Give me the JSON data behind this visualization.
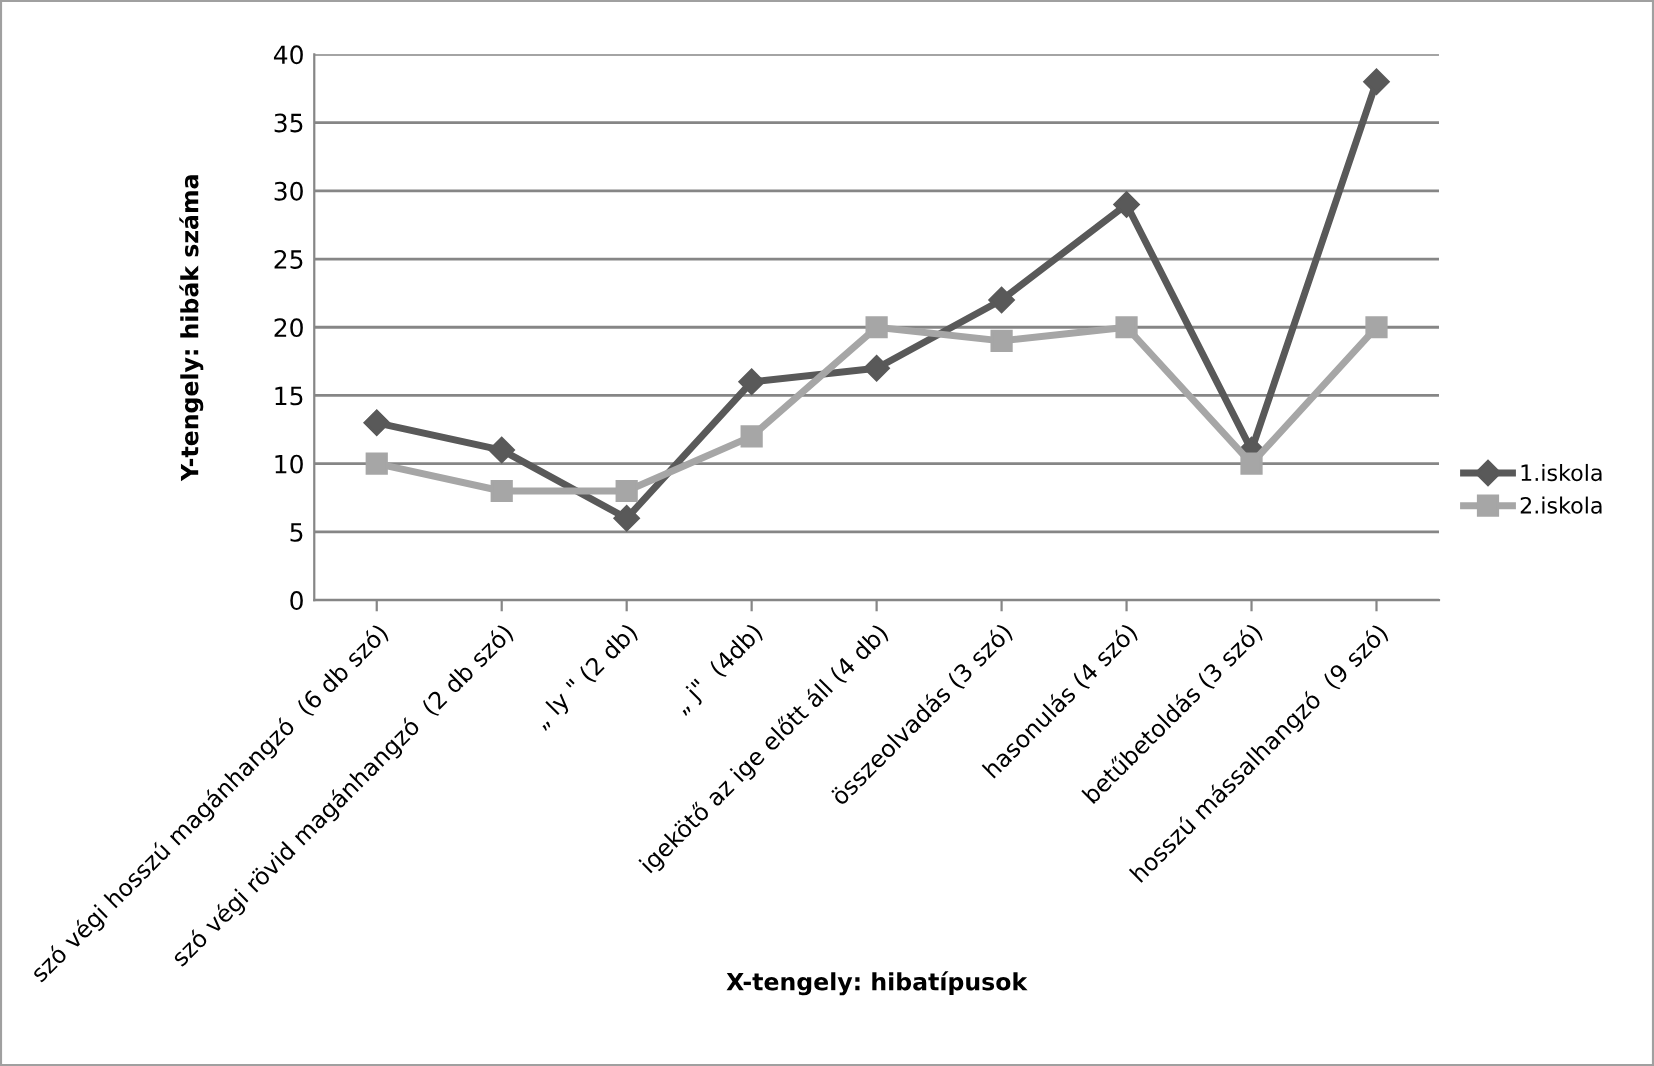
{
  "chart_data": {
    "type": "line",
    "xlabel": "X-tengely: hibatípusok",
    "ylabel": "Y-tengely: hibák száma",
    "categories": [
      "szó végi hosszú magánhangzó  (6 db szó)",
      "szó végi rövid magánhangzó  (2 db szó)",
      "„ ly \" (2 db)",
      "„ j\"  (4db)",
      "igekötő az ige előtt áll (4 db)",
      "összeolvadás (3 szó)",
      "hasonulás (4 szó)",
      "betűbetoldás (3 szó)",
      "hosszú mássalhangzó  (9 szó)"
    ],
    "series": [
      {
        "name": "1.iskola",
        "color": "#595959",
        "marker": "diamond",
        "values": [
          13,
          11,
          6,
          16,
          17,
          22,
          29,
          11,
          38
        ]
      },
      {
        "name": "2.iskola",
        "color": "#a6a6a6",
        "marker": "square",
        "values": [
          10,
          8,
          8,
          12,
          20,
          19,
          20,
          10,
          20
        ]
      }
    ],
    "ylim": [
      0,
      40
    ],
    "yticks": [
      0,
      5,
      10,
      15,
      20,
      25,
      30,
      35,
      40
    ],
    "grid": "y",
    "legend": "right",
    "line_style": "solid"
  }
}
